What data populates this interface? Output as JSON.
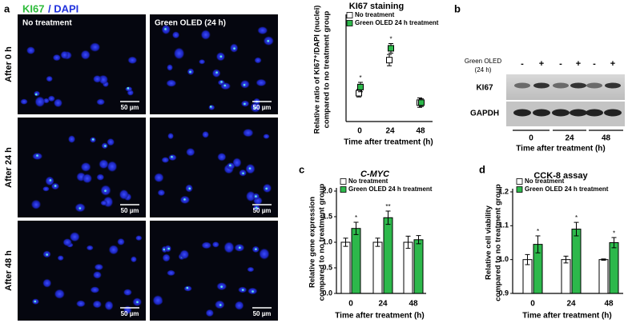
{
  "panel_a": {
    "label": "a",
    "stain": [
      "KI67",
      "/ DAPI"
    ],
    "columns": [
      "No treatment",
      "Green OLED (24 h)"
    ],
    "rows": [
      "After 0 h",
      "After 24 h",
      "After 48 h"
    ],
    "scale_bar": "50 µm"
  },
  "panel_b": {
    "label": "b",
    "treatment_label": [
      "Green OLED",
      "(24 h)"
    ],
    "signs": [
      "-",
      "+"
    ],
    "bands": [
      "KI67",
      "GAPDH"
    ],
    "times": [
      "0",
      "24",
      "48"
    ],
    "xlabel": "Time after treatment (h)"
  },
  "chart_data": [
    {
      "type": "point",
      "title": "KI67 staining",
      "ylabel": [
        "Relative ratio of KI67⁺/DAPI (nuclei)",
        "compared to no treatment group"
      ],
      "xlabel": "Time after treatment (h)",
      "categories": [
        "0",
        "24",
        "48"
      ],
      "ylim": [
        0.45,
        2.65
      ],
      "series": [
        {
          "name": "No treatment",
          "color": "#ffffff",
          "values": [
            1.05,
            1.75,
            0.85
          ],
          "errors": [
            0.08,
            0.12,
            0.1
          ],
          "annotations": [
            null,
            null,
            null
          ]
        },
        {
          "name": "Green OLED 24 h treatment",
          "color": "#2db84b",
          "values": [
            1.18,
            2.0,
            0.85
          ],
          "errors": [
            0.1,
            0.1,
            0.08
          ],
          "annotations": [
            "*",
            "*",
            null
          ]
        }
      ]
    },
    {
      "type": "bar",
      "label": "c",
      "title": "C-MYC",
      "ylabel": [
        "Relative gene expression",
        "compared to no treatment group"
      ],
      "xlabel": "Time after treatment (h)",
      "categories": [
        "0",
        "24",
        "48"
      ],
      "ylim": [
        0,
        2.0
      ],
      "yticks": [
        {
          "value": 0,
          "label": "0.0"
        },
        0.5,
        {
          "value": 1.0,
          "label": "1.0"
        },
        1.5,
        {
          "value": 2.0,
          "label": "2.0"
        }
      ],
      "series": [
        {
          "name": "No treatment",
          "color": "#ffffff",
          "values": [
            1.0,
            1.0,
            1.0
          ],
          "errors": [
            0.08,
            0.08,
            0.12
          ],
          "annotations": [
            null,
            null,
            null
          ]
        },
        {
          "name": "Green OLED 24 h treatment",
          "color": "#2db84b",
          "values": [
            1.27,
            1.48,
            1.05
          ],
          "errors": [
            0.12,
            0.13,
            0.08
          ],
          "annotations": [
            "*",
            "**",
            null
          ]
        }
      ]
    },
    {
      "type": "bar",
      "label": "d",
      "title": "CCK-8 assay",
      "ylabel": [
        "Relative cell viability",
        "compared to no treatment group"
      ],
      "xlabel": "Time after treatment (h)",
      "categories": [
        "0",
        "24",
        "48"
      ],
      "ylim": [
        0.9,
        1.2
      ],
      "yticks": [
        0.9,
        {
          "value": 1.0,
          "label": "1.0"
        },
        1.1,
        1.2
      ],
      "series": [
        {
          "name": "No treatment",
          "color": "#ffffff",
          "values": [
            1.0,
            1.0,
            1.0
          ],
          "errors": [
            0.015,
            0.01,
            0.002
          ],
          "annotations": [
            null,
            null,
            null
          ]
        },
        {
          "name": "Green OLED 24 h treatment",
          "color": "#2db84b",
          "values": [
            1.045,
            1.09,
            1.05
          ],
          "errors": [
            0.025,
            0.02,
            0.015
          ],
          "annotations": [
            "*",
            "*",
            "*"
          ]
        }
      ]
    }
  ]
}
